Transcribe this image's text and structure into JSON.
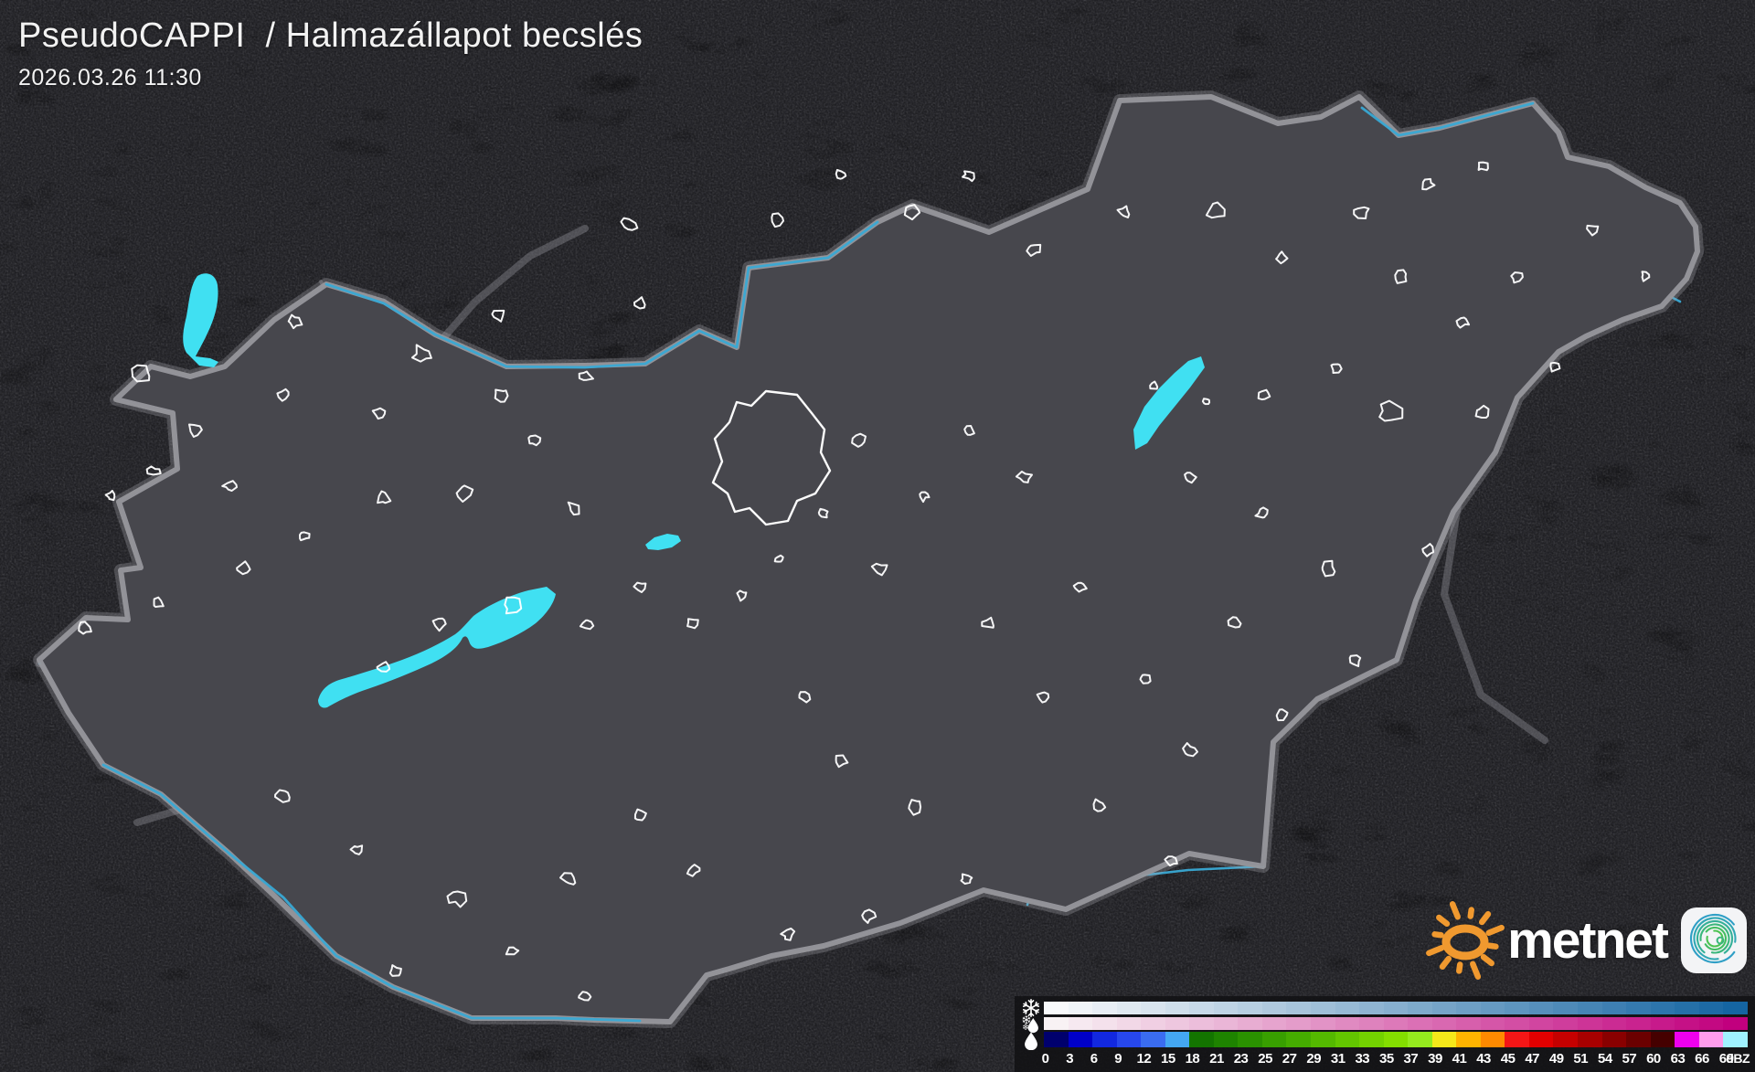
{
  "header": {
    "title": "PseudoCAPPI  / Halmazállapot becslés",
    "timestamp": "2026.03.26 11:30"
  },
  "logo": {
    "brand": "metnet"
  },
  "legend": {
    "unit": "dBZ",
    "tick_labels": [
      "0",
      "3",
      "6",
      "9",
      "12",
      "15",
      "18",
      "21",
      "23",
      "25",
      "27",
      "29",
      "31",
      "33",
      "35",
      "37",
      "39",
      "41",
      "43",
      "45",
      "47",
      "49",
      "51",
      "54",
      "57",
      "60",
      "63",
      "66",
      "69"
    ],
    "rows": [
      {
        "type": "snow",
        "icon": "snowflake-icon",
        "gradient_from": "#f8f9fb",
        "gradient_to": "#1565a2"
      },
      {
        "type": "sleet",
        "icon": "sleet-icon",
        "gradient_from": "#f8f2f4",
        "gradient_to": "#c1007e"
      },
      {
        "type": "rain",
        "icon": "raindrop-icon",
        "colors": [
          "#00006d",
          "#0000c8",
          "#1228e0",
          "#2747ec",
          "#3a6cf0",
          "#44a7f2",
          "#137400",
          "#1e8300",
          "#2a9100",
          "#389f00",
          "#45ac00",
          "#54b900",
          "#63c600",
          "#73d200",
          "#84de00",
          "#95ea1e",
          "#f5e81a",
          "#ffb400",
          "#ff8a00",
          "#f41616",
          "#e20000",
          "#c50000",
          "#a70000",
          "#890000",
          "#6b0000",
          "#450000",
          "#ee00ee",
          "#ff9cec",
          "#a0f2ff"
        ]
      }
    ]
  },
  "map": {
    "colors": {
      "river": "#39a9d4",
      "lake": "#40e0f2",
      "border": "#97979c",
      "road": "#8d8d93",
      "county": "#55555b",
      "city": "#ffffff",
      "landIn": "#47474d",
      "landOut": "#2a2a2f",
      "sun": "#f0992f"
    }
  }
}
